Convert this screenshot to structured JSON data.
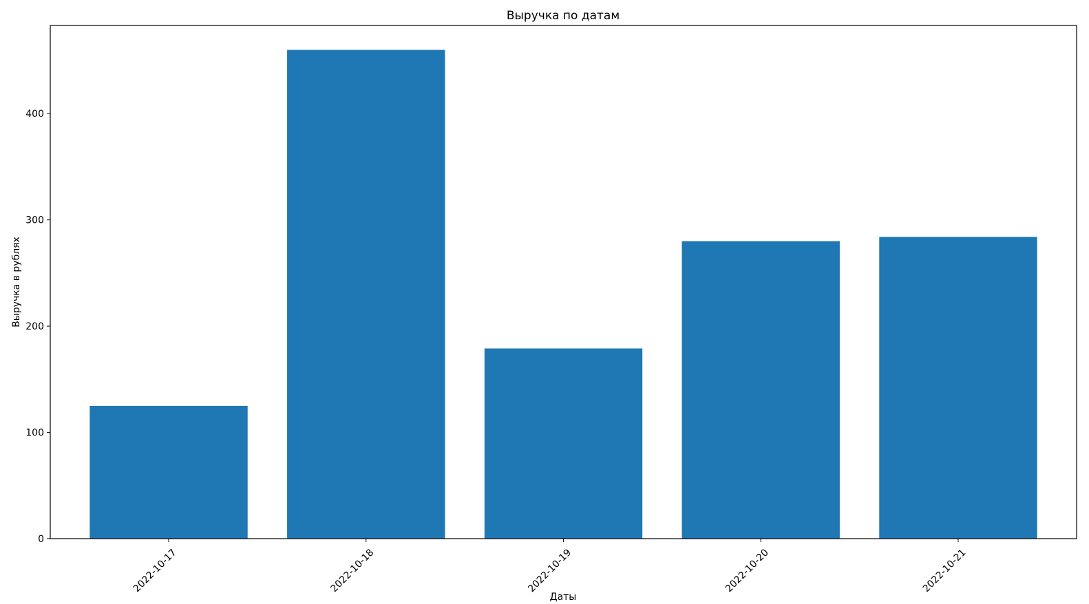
{
  "chart_data": {
    "type": "bar",
    "title": "Выручка по датам",
    "xlabel": "Даты",
    "ylabel": "Выручка в рублях",
    "categories": [
      "2022-10-17",
      "2022-10-18",
      "2022-10-19",
      "2022-10-20",
      "2022-10-21"
    ],
    "values": [
      125,
      460,
      179,
      280,
      284
    ],
    "ylim": [
      0,
      483
    ],
    "yticks": [
      0,
      100,
      200,
      300,
      400
    ],
    "bar_color": "#1f77b4",
    "grid": false,
    "legend": "none",
    "xtick_rotation": 45
  }
}
